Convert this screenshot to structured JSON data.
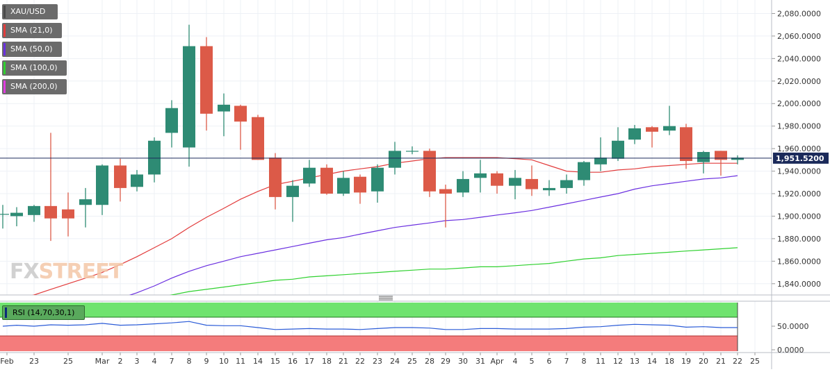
{
  "symbol": "XAU/USD",
  "indicators": [
    {
      "label": "SMA (21,0)",
      "color": "#e23b3b"
    },
    {
      "label": "SMA (50,0)",
      "color": "#6a2fe0"
    },
    {
      "label": "SMA (100,0)",
      "color": "#2fd12f"
    },
    {
      "label": "SMA (200,0)",
      "color": "#e03be0"
    }
  ],
  "rsi_label": "RSI (14,70,30,1)",
  "logo_text_1": "FX",
  "logo_text_2": "STREET",
  "last_price_label": "1,951.5200",
  "colors": {
    "bull": "#2e8b74",
    "bear": "#dc5a48",
    "sma21": "#e23b3b",
    "sma50": "#6a2fe0",
    "sma100": "#2fd12f",
    "rsi_line": "#2a5bd7",
    "overbought": "#6fe36f",
    "oversold": "#f47c7c"
  },
  "chart_data": {
    "type": "candlestick",
    "x_labels": [
      "Feb",
      "23",
      "25",
      "Mar",
      "2",
      "3",
      "4",
      "7",
      "8",
      "9",
      "10",
      "11",
      "14",
      "15",
      "16",
      "17",
      "18",
      "21",
      "22",
      "23",
      "24",
      "25",
      "28",
      "29",
      "30",
      "31",
      "Apr",
      "4",
      "5",
      "6",
      "7",
      "8",
      "11",
      "12",
      "13",
      "14",
      "18",
      "19",
      "20",
      "21",
      "22",
      "25"
    ],
    "candles": [
      {
        "o": 1902,
        "h": 1910,
        "l": 1889,
        "c": 1902
      },
      {
        "o": 1900,
        "h": 1908,
        "l": 1891,
        "c": 1903
      },
      {
        "o": 1901,
        "h": 1910,
        "l": 1895,
        "c": 1909
      },
      {
        "o": 1909,
        "h": 1974,
        "l": 1878,
        "c": 1898
      },
      {
        "o": 1906,
        "h": 1921,
        "l": 1882,
        "c": 1898
      },
      {
        "o": 1910,
        "h": 1925,
        "l": 1890,
        "c": 1915
      },
      {
        "o": 1910,
        "h": 1946,
        "l": 1901,
        "c": 1945
      },
      {
        "o": 1945,
        "h": 1951,
        "l": 1913,
        "c": 1925
      },
      {
        "o": 1926,
        "h": 1941,
        "l": 1922,
        "c": 1937
      },
      {
        "o": 1937,
        "h": 1970,
        "l": 1930,
        "c": 1967
      },
      {
        "o": 1974,
        "h": 2003,
        "l": 1961,
        "c": 1996
      },
      {
        "o": 1961,
        "h": 2070,
        "l": 1944,
        "c": 2051
      },
      {
        "o": 2051,
        "h": 2059,
        "l": 1976,
        "c": 1991
      },
      {
        "o": 1993,
        "h": 2009,
        "l": 1971,
        "c": 1999
      },
      {
        "o": 1998,
        "h": 1999,
        "l": 1959,
        "c": 1984
      },
      {
        "o": 1988,
        "h": 1990,
        "l": 1950,
        "c": 1950
      },
      {
        "o": 1952,
        "h": 1956,
        "l": 1906,
        "c": 1917
      },
      {
        "o": 1917,
        "h": 1932,
        "l": 1895,
        "c": 1927
      },
      {
        "o": 1929,
        "h": 1950,
        "l": 1926,
        "c": 1943
      },
      {
        "o": 1943,
        "h": 1946,
        "l": 1919,
        "c": 1920
      },
      {
        "o": 1920,
        "h": 1940,
        "l": 1918,
        "c": 1934
      },
      {
        "o": 1935,
        "h": 1937,
        "l": 1911,
        "c": 1921
      },
      {
        "o": 1922,
        "h": 1946,
        "l": 1912,
        "c": 1943
      },
      {
        "o": 1943,
        "h": 1966,
        "l": 1937,
        "c": 1958
      },
      {
        "o": 1958,
        "h": 1962,
        "l": 1955,
        "c": 1958
      },
      {
        "o": 1958,
        "h": 1960,
        "l": 1917,
        "c": 1922
      },
      {
        "o": 1924,
        "h": 1928,
        "l": 1890,
        "c": 1920
      },
      {
        "o": 1921,
        "h": 1940,
        "l": 1917,
        "c": 1933
      },
      {
        "o": 1934,
        "h": 1950,
        "l": 1921,
        "c": 1938
      },
      {
        "o": 1938,
        "h": 1940,
        "l": 1920,
        "c": 1927
      },
      {
        "o": 1927,
        "h": 1941,
        "l": 1915,
        "c": 1934
      },
      {
        "o": 1933,
        "h": 1945,
        "l": 1918,
        "c": 1924
      },
      {
        "o": 1923,
        "h": 1932,
        "l": 1918,
        "c": 1925
      },
      {
        "o": 1925,
        "h": 1937,
        "l": 1920,
        "c": 1932
      },
      {
        "o": 1932,
        "h": 1949,
        "l": 1927,
        "c": 1948
      },
      {
        "o": 1946,
        "h": 1970,
        "l": 1940,
        "c": 1952
      },
      {
        "o": 1951,
        "h": 1979,
        "l": 1949,
        "c": 1967
      },
      {
        "o": 1968,
        "h": 1981,
        "l": 1964,
        "c": 1978
      },
      {
        "o": 1979,
        "h": 1980,
        "l": 1961,
        "c": 1975
      },
      {
        "o": 1976,
        "h": 1998,
        "l": 1972,
        "c": 1980
      },
      {
        "o": 1979,
        "h": 1982,
        "l": 1942,
        "c": 1949
      },
      {
        "o": 1948,
        "h": 1958,
        "l": 1938,
        "c": 1957
      },
      {
        "o": 1958,
        "h": 1958,
        "l": 1936,
        "c": 1950
      },
      {
        "o": 1950,
        "h": 1954,
        "l": 1946,
        "c": 1952
      }
    ],
    "sma21": [
      1822,
      1826,
      1830,
      1835,
      1840,
      1845,
      1850,
      1857,
      1864,
      1872,
      1880,
      1890,
      1899,
      1907,
      1915,
      1922,
      1928,
      1931,
      1934,
      1937,
      1940,
      1942,
      1944,
      1947,
      1949,
      1951,
      1952,
      1952,
      1952,
      1952,
      1951,
      1950,
      1945,
      1940,
      1939,
      1939,
      1941,
      1942,
      1944,
      1945,
      1946,
      1947,
      1947,
      1947
    ],
    "sma50": [
      1805,
      1807,
      1809,
      1812,
      1815,
      1819,
      1823,
      1827,
      1832,
      1838,
      1845,
      1851,
      1856,
      1860,
      1864,
      1867,
      1870,
      1873,
      1876,
      1879,
      1881,
      1884,
      1887,
      1890,
      1892,
      1894,
      1896,
      1897,
      1899,
      1901,
      1903,
      1905,
      1908,
      1911,
      1914,
      1917,
      1920,
      1924,
      1927,
      1929,
      1931,
      1933,
      1934,
      1936
    ],
    "sma100": [
      1805,
      1807,
      1809,
      1811,
      1813,
      1815,
      1818,
      1821,
      1824,
      1827,
      1830,
      1833,
      1835,
      1837,
      1839,
      1841,
      1843,
      1844,
      1846,
      1847,
      1848,
      1849,
      1850,
      1851,
      1852,
      1853,
      1853,
      1854,
      1855,
      1855,
      1856,
      1857,
      1858,
      1860,
      1862,
      1863,
      1865,
      1866,
      1867,
      1868,
      1869,
      1870,
      1871,
      1872
    ],
    "rsi": [
      50,
      52,
      50,
      53,
      52,
      53,
      56,
      52,
      53,
      55,
      57,
      60,
      52,
      51,
      51,
      47,
      43,
      44,
      45,
      44,
      44,
      43,
      45,
      47,
      47,
      46,
      43,
      43,
      45,
      45,
      44,
      44,
      44,
      45,
      48,
      49,
      52,
      54,
      53,
      52,
      48,
      49,
      47,
      47
    ],
    "y_ticks": [
      1840,
      1860,
      1880,
      1900,
      1920,
      1940,
      1960,
      1980,
      2000,
      2020,
      2040,
      2060,
      2080
    ],
    "y_tick_labels": [
      "1,840.0000",
      "1,860.0000",
      "1,880.0000",
      "1,900.0000",
      "1,920.0000",
      "1,940.0000",
      "1,960.0000",
      "1,980.0000",
      "2,000.0000",
      "2,020.0000",
      "2,040.0000",
      "2,060.0000",
      "2,080.0000"
    ],
    "rsi_ticks": [
      0,
      50
    ],
    "rsi_tick_labels": [
      "0.0000",
      "50.0000"
    ],
    "ylim": [
      1830,
      2092
    ],
    "last_price": 1951.52
  }
}
